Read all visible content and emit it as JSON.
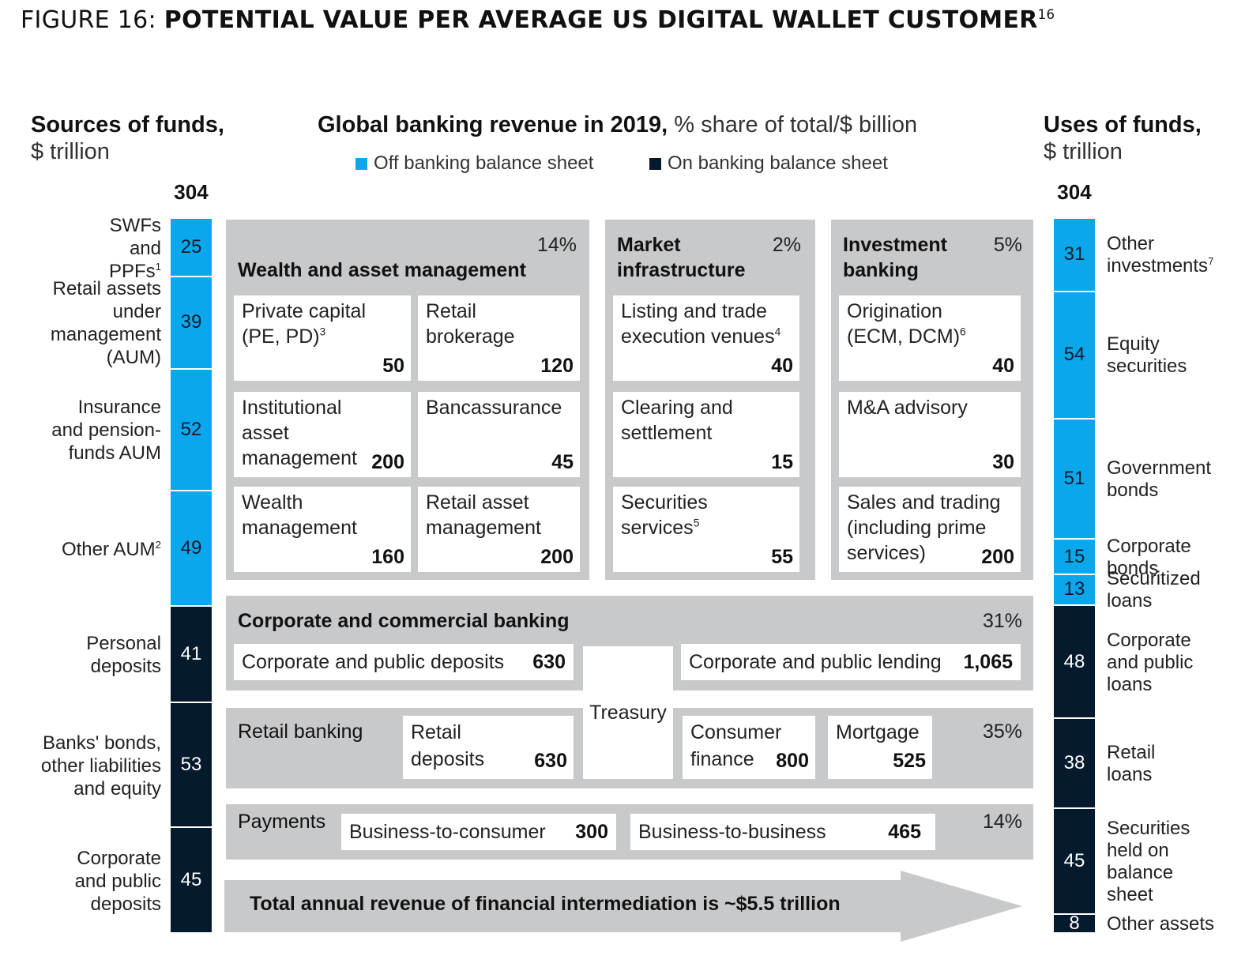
{
  "figure": {
    "prefix": "FIGURE 16: ",
    "title": "POTENTIAL VALUE PER AVERAGE US DIGITAL WALLET CUSTOMER",
    "footnote": "16"
  },
  "sources": {
    "title_bold": "Sources of funds,",
    "title_unit": "$ trillion",
    "total": "304",
    "items": [
      {
        "label": "SWFs and PPFs",
        "sup": "1",
        "value": "25",
        "type": "off"
      },
      {
        "label": "Retail assets under management (AUM)",
        "value": "39",
        "type": "off"
      },
      {
        "label": "Insurance and pension-funds AUM",
        "value": "52",
        "type": "off"
      },
      {
        "label": "Other AUM",
        "sup": "2",
        "value": "49",
        "type": "off"
      },
      {
        "label": "Personal deposits",
        "value": "41",
        "type": "on"
      },
      {
        "label": "Banks' bonds, other liabilities and equity",
        "value": "53",
        "type": "on"
      },
      {
        "label": "Corporate and public deposits",
        "value": "45",
        "type": "on"
      }
    ]
  },
  "center": {
    "title_bold": "Global banking revenue in 2019,",
    "title_rest": " % share of total/$ billion",
    "legend": {
      "off_label": "Off banking balance sheet",
      "on_label": "On banking balance sheet",
      "off_color": "#0aa7ec",
      "on_color": "#061a2e"
    }
  },
  "wealth": {
    "title": "Wealth and asset management",
    "pct": "14%",
    "cells": [
      {
        "label": "Private capital (PE, PD)",
        "sup": "3",
        "value": "50"
      },
      {
        "label": "Retail brokerage",
        "value": "120"
      },
      {
        "label": "Institutional asset management",
        "value": "200"
      },
      {
        "label": "Bancassurance",
        "value": "45"
      },
      {
        "label": "Wealth management",
        "value": "160"
      },
      {
        "label": "Retail asset management",
        "value": "200"
      }
    ]
  },
  "market": {
    "title": "Market infrastructure",
    "pct": "2%",
    "cells": [
      {
        "label": "Listing and trade execution venues",
        "sup": "4",
        "value": "40"
      },
      {
        "label": "Clearing and settlement",
        "value": "15"
      },
      {
        "label": "Securities services",
        "sup": "5",
        "value": "55"
      }
    ]
  },
  "investment": {
    "title": "Investment banking",
    "pct": "5%",
    "cells": [
      {
        "label": "Origination (ECM, DCM)",
        "sup": "6",
        "value": "40"
      },
      {
        "label": "M&A advisory",
        "value": "30"
      },
      {
        "label": "Sales and trading (including prime services)",
        "value": "200"
      }
    ]
  },
  "corporate": {
    "title": "Corporate and commercial banking",
    "pct": "31%",
    "deposits_label": "Corporate and public deposits",
    "deposits_value": "630",
    "lending_label": "Corporate and public lending",
    "lending_value": "1,065"
  },
  "treasury": {
    "label": "Treasury"
  },
  "retail": {
    "title": "Retail banking",
    "pct": "35%",
    "deposits_label": "Retail deposits",
    "deposits_value": "630",
    "consumer_label": "Consumer finance",
    "consumer_value": "800",
    "mortgage_label": "Mortgage",
    "mortgage_value": "525"
  },
  "payments": {
    "title": "Payments",
    "pct": "14%",
    "b2c_label": "Business-to-consumer",
    "b2c_value": "300",
    "b2b_label": "Business-to-business",
    "b2b_value": "465"
  },
  "total_arrow": {
    "text": "Total annual revenue of financial intermediation is ~$5.5 trillion"
  },
  "uses": {
    "title_bold": "Uses of funds,",
    "title_unit": "$ trillion",
    "total": "304",
    "items": [
      {
        "label": "Other investments",
        "sup": "7",
        "value": "31",
        "type": "off"
      },
      {
        "label": "Equity securities",
        "value": "54",
        "type": "off"
      },
      {
        "label": "Government bonds",
        "value": "51",
        "type": "off"
      },
      {
        "label": "Corporate bonds",
        "value": "15",
        "type": "off"
      },
      {
        "label": "Securitized loans",
        "value": "13",
        "type": "off"
      },
      {
        "label": "Corporate and public loans",
        "value": "48",
        "type": "on"
      },
      {
        "label": "Retail loans",
        "value": "38",
        "type": "on"
      },
      {
        "label": "Securities held on balance sheet",
        "value": "45",
        "type": "on"
      },
      {
        "label": "Other assets",
        "value": "8",
        "type": "on"
      }
    ]
  }
}
